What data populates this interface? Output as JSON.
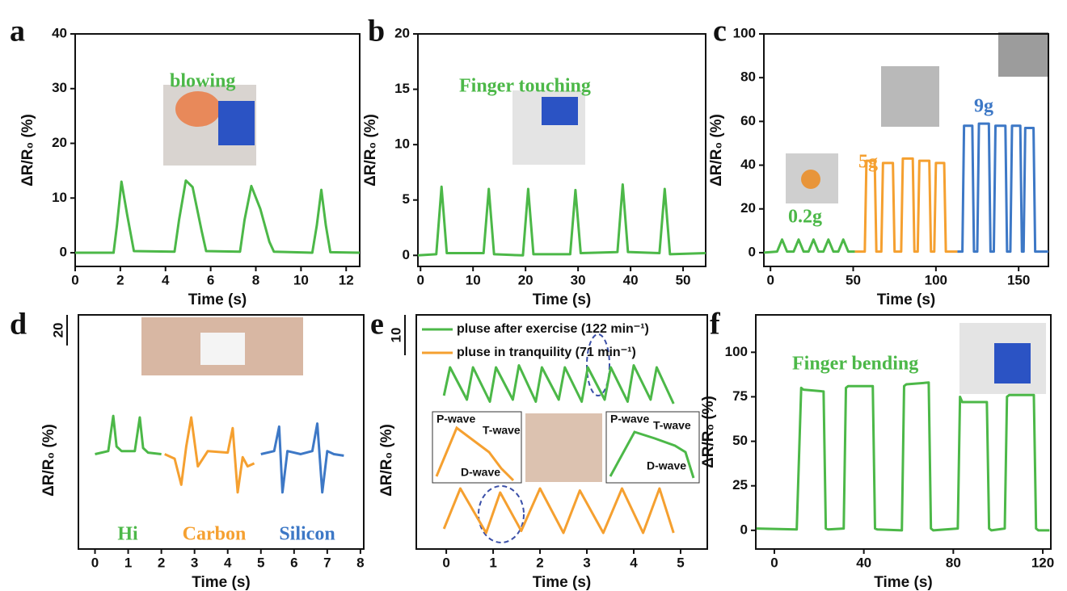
{
  "chart_data": [
    {
      "type": "line",
      "panel_label": "a",
      "annotations": [
        "blowing"
      ],
      "xlabel": "Time (s)",
      "ylabel": "ΔR/R₀ (%)",
      "xlim": [
        0,
        12.6
      ],
      "ylim": [
        -2.5,
        40
      ],
      "xticks": [
        0,
        2,
        4,
        6,
        8,
        10,
        12
      ],
      "yticks": [
        0,
        10,
        20,
        30,
        40
      ],
      "series": [
        {
          "color": "#4cb848",
          "x": [
            0,
            1.7,
            1.85,
            2.05,
            2.3,
            2.6,
            4.4,
            4.6,
            4.9,
            5.2,
            5.6,
            5.8,
            7.3,
            7.5,
            7.8,
            8.2,
            8.6,
            8.8,
            10.5,
            10.7,
            10.9,
            11.1,
            11.3,
            12.6
          ],
          "values": [
            0,
            0,
            5,
            13,
            7,
            0.3,
            0.2,
            6,
            13.2,
            12,
            4,
            0.3,
            0.2,
            6,
            12.2,
            8,
            2,
            0.2,
            0,
            5,
            11.5,
            5,
            0.1,
            0
          ]
        }
      ]
    },
    {
      "type": "line",
      "panel_label": "b",
      "annotations": [
        "Finger touching"
      ],
      "xlabel": "Time (s)",
      "ylabel": "ΔR/R₀ (%)",
      "xlim": [
        -0.5,
        54.3
      ],
      "ylim": [
        -1,
        20
      ],
      "xticks": [
        0,
        10,
        20,
        30,
        40,
        50
      ],
      "yticks": [
        0,
        5,
        10,
        15,
        20
      ],
      "series": [
        {
          "color": "#4cb848",
          "x": [
            -0.5,
            3,
            4,
            5,
            12,
            13,
            14,
            19.5,
            20.5,
            21.5,
            28.5,
            29.5,
            30.5,
            37.5,
            38.5,
            39.5,
            45.5,
            46.5,
            47.5,
            54.3
          ],
          "values": [
            0,
            0.1,
            6.2,
            0.2,
            0.2,
            6,
            0.1,
            0,
            6,
            0.1,
            0.1,
            5.9,
            0.2,
            0.3,
            6.4,
            0.3,
            0.2,
            6,
            0.1,
            0.2
          ]
        }
      ]
    },
    {
      "type": "line",
      "panel_label": "c",
      "xlabel": "Time (s)",
      "ylabel": "ΔR/R₀ (%)",
      "xlim": [
        -4,
        168
      ],
      "ylim": [
        -6.3,
        100
      ],
      "xticks": [
        0,
        50,
        100,
        150
      ],
      "yticks": [
        0,
        20,
        40,
        60,
        80,
        100
      ],
      "series": [
        {
          "name": "0.2g",
          "color": "#4cb848",
          "x": [
            -4,
            4,
            7,
            10,
            14,
            17,
            20,
            23,
            26,
            29,
            32,
            35,
            38,
            41,
            44,
            47,
            51
          ],
          "values": [
            0,
            0.5,
            6,
            0.5,
            0.5,
            6,
            0.5,
            0.5,
            6,
            0.5,
            0.5,
            6,
            0.5,
            0.5,
            6,
            0.5,
            0.5
          ]
        },
        {
          "name": "5g",
          "color": "#f5a030",
          "x": [
            51,
            57,
            58,
            63,
            64,
            67,
            68,
            74,
            75,
            79,
            80,
            86,
            87,
            89,
            90,
            96,
            97,
            99,
            100,
            105,
            106,
            113
          ],
          "values": [
            0.5,
            0.5,
            42,
            42,
            0.5,
            0.5,
            41,
            41,
            0.5,
            0.5,
            43,
            43,
            0.5,
            0.5,
            42,
            42,
            0.5,
            0.5,
            41,
            41,
            0.5,
            0.5
          ]
        },
        {
          "name": "9g",
          "color": "#3d78c6",
          "x": [
            113,
            116,
            117,
            122,
            123,
            125,
            126,
            132,
            133,
            135,
            136,
            142,
            143,
            145,
            146,
            151,
            152,
            153,
            154,
            159,
            160,
            168
          ],
          "values": [
            0.5,
            0.5,
            58,
            58,
            0.5,
            0.5,
            59,
            59,
            0.5,
            0.5,
            58,
            58,
            0.5,
            0.5,
            58,
            58,
            0.5,
            0.5,
            57,
            57,
            0.5,
            0.5
          ]
        }
      ]
    },
    {
      "type": "line",
      "panel_label": "d",
      "xlabel": "Time (s)",
      "ylabel": "ΔR/R₀ (%)",
      "scale_bar": 20,
      "xlim": [
        -0.5,
        8.1
      ],
      "ylim": [
        -62,
        91
      ],
      "xticks": [
        0,
        1,
        2,
        3,
        4,
        5,
        6,
        7,
        8
      ],
      "series": [
        {
          "name": "Hi",
          "color": "#4cb848",
          "x": [
            0,
            0.4,
            0.55,
            0.65,
            0.8,
            1.2,
            1.35,
            1.45,
            1.6,
            2.0
          ],
          "values": [
            0,
            2,
            25,
            5,
            2,
            2,
            24,
            4,
            1,
            0
          ]
        },
        {
          "name": "Carbon",
          "color": "#f5a030",
          "x": [
            2.1,
            2.4,
            2.6,
            2.75,
            2.9,
            3.1,
            3.4,
            4.0,
            4.15,
            4.3,
            4.45,
            4.6,
            4.8
          ],
          "values": [
            0,
            -3,
            -20,
            5,
            24,
            -8,
            2,
            1,
            17,
            -25,
            -2,
            -8,
            -6
          ]
        },
        {
          "name": "Silicon",
          "color": "#3d78c6",
          "x": [
            5.0,
            5.4,
            5.55,
            5.65,
            5.8,
            6.2,
            6.55,
            6.7,
            6.85,
            7.0,
            7.2,
            7.5
          ],
          "values": [
            0,
            2,
            18,
            -25,
            2,
            0,
            2,
            20,
            -25,
            2,
            0,
            -1
          ]
        }
      ]
    },
    {
      "type": "line",
      "panel_label": "e",
      "xlabel": "Time (s)",
      "ylabel": "ΔR/R₀ (%)",
      "scale_bar": 10,
      "annotations": [
        "P-wave",
        "T-wave",
        "D-wave",
        "P-wave",
        "T-wave",
        "D-wave"
      ],
      "xlim": [
        -0.64,
        5.57
      ],
      "ylim": [
        0,
        58
      ],
      "xticks": [
        0,
        1,
        2,
        3,
        4,
        5
      ],
      "legend": "upper left",
      "series": [
        {
          "name": "pluse after exercise (122 min⁻¹)",
          "color": "#4cb848",
          "x": [
            -0.05,
            0.08,
            0.44,
            0.57,
            0.93,
            1.06,
            1.42,
            1.55,
            1.91,
            2.04,
            2.4,
            2.53,
            2.89,
            3.02,
            3.38,
            3.51,
            3.87,
            4.0,
            4.36,
            4.49,
            4.85
          ],
          "values": [
            38,
            45,
            37,
            45,
            36.5,
            45,
            37,
            45.5,
            36.5,
            45,
            37,
            45,
            36.5,
            45,
            37,
            45,
            36.5,
            45.5,
            37,
            45,
            36
          ]
        },
        {
          "name": "pluse in tranquility  (71 min⁻¹)",
          "color": "#f5a030",
          "x": [
            -0.05,
            0.3,
            0.85,
            1.15,
            1.6,
            2.0,
            2.5,
            2.85,
            3.35,
            3.75,
            4.2,
            4.55,
            4.85
          ],
          "values": [
            5,
            15,
            4,
            14,
            4.5,
            15,
            4,
            14.5,
            4,
            15,
            4,
            15,
            4
          ]
        }
      ]
    },
    {
      "type": "line",
      "panel_label": "f",
      "annotations": [
        "Finger bending"
      ],
      "xlabel": "Time (s)",
      "ylabel": "ΔR/R₀ (%)",
      "xlim": [
        -8.3,
        123.6
      ],
      "ylim": [
        -10.5,
        121
      ],
      "xticks": [
        0,
        40,
        80,
        120
      ],
      "yticks": [
        0,
        25,
        50,
        75,
        100
      ],
      "series": [
        {
          "color": "#4cb848",
          "x": [
            -8,
            10,
            12,
            13,
            22,
            23,
            24,
            31,
            32,
            33,
            44,
            45,
            46,
            57,
            58,
            59,
            69,
            70,
            71,
            82,
            83,
            84,
            95,
            96,
            97,
            103,
            104,
            105,
            116,
            117,
            118,
            123
          ],
          "values": [
            1,
            0.5,
            80,
            79,
            78,
            1,
            0.5,
            1,
            80,
            81,
            81,
            1,
            0.5,
            0,
            81,
            82,
            83,
            1,
            0,
            1,
            75,
            72,
            72,
            1,
            0,
            1,
            75,
            76,
            76,
            1,
            0,
            0
          ]
        }
      ]
    }
  ]
}
